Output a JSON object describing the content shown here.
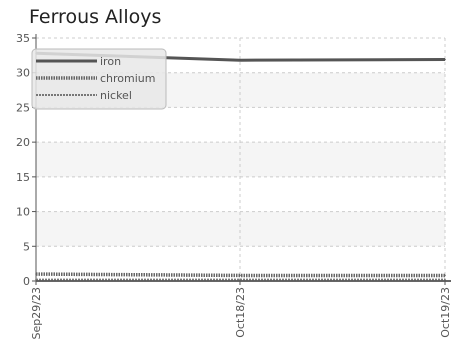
{
  "chart_data": {
    "type": "line",
    "title": "Ferrous Alloys",
    "x": [
      "Sep29/23",
      "Oct18/23",
      "Oct19/23"
    ],
    "series": [
      {
        "name": "iron",
        "values": [
          32.8,
          31.8,
          31.9
        ],
        "color": "#555555",
        "style": "solid"
      },
      {
        "name": "chromium",
        "values": [
          1.0,
          0.8,
          0.8
        ],
        "color": "#666666",
        "style": "dotted"
      },
      {
        "name": "nickel",
        "values": [
          0.2,
          0.2,
          0.2
        ],
        "color": "#777777",
        "style": "dashed"
      }
    ],
    "ylim": [
      0,
      35
    ],
    "yticks": [
      0,
      5,
      10,
      15,
      20,
      25,
      30,
      35
    ],
    "grid": true,
    "legend_position": "top-left"
  }
}
